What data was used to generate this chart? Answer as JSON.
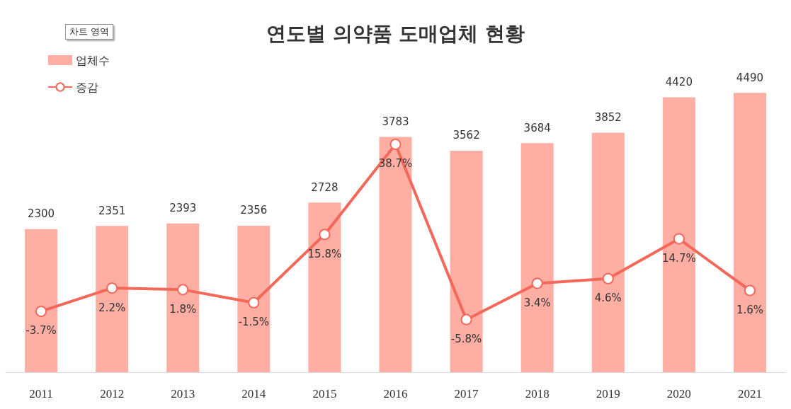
{
  "chart_data": {
    "type": "bar",
    "title": "연도별 의약품 도매업체 현황",
    "categories": [
      "2011",
      "2012",
      "2013",
      "2014",
      "2015",
      "2016",
      "2017",
      "2018",
      "2019",
      "2020",
      "2021"
    ],
    "series": [
      {
        "name": "업체수",
        "color": "#ffaea3",
        "values": [
          2300,
          2351,
          2393,
          2356,
          2728,
          3783,
          3562,
          3684,
          3852,
          4420,
          4490
        ]
      },
      {
        "name": "증감",
        "type": "line",
        "axis": "y2",
        "color": "#f4685a",
        "marker": "circle",
        "values": [
          -3.7,
          2.2,
          1.8,
          -1.5,
          15.8,
          38.7,
          -5.8,
          3.4,
          4.6,
          14.7,
          1.6
        ],
        "value_labels": [
          "-3.7%",
          "2.2%",
          "1.8%",
          "-1.5%",
          "15.8%",
          "38.7%",
          "-5.8%",
          "3.4%",
          "4.6%",
          "14.7%",
          "1.6%"
        ]
      }
    ],
    "data_labels": true,
    "grid": false,
    "legend": "top left",
    "annotations": [
      "차트 영역"
    ]
  }
}
